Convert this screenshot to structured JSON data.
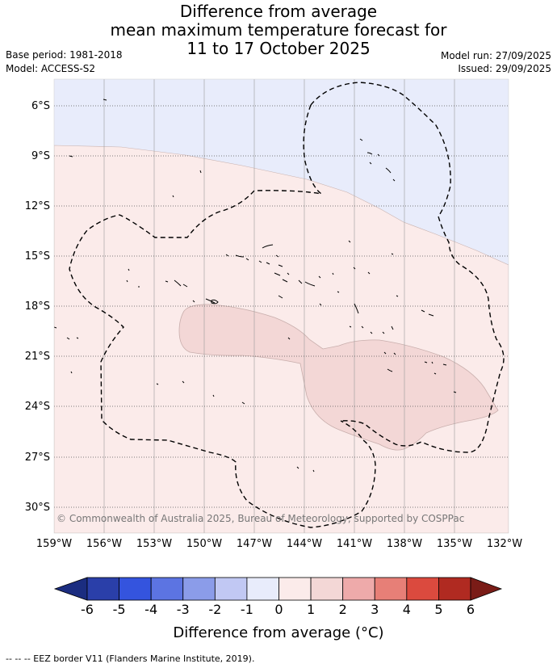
{
  "title": {
    "line1": "Difference from average",
    "line2": "mean maximum temperature forecast for",
    "line3": "11 to 17 October 2025"
  },
  "meta": {
    "base_period": "Base period: 1981-2018",
    "model": "Model: ACCESS-S2",
    "model_run": "Model run: 27/09/2025",
    "issued": "Issued: 29/09/2025"
  },
  "map": {
    "lat_labels": [
      "6°S",
      "9°S",
      "12°S",
      "15°S",
      "18°S",
      "21°S",
      "24°S",
      "27°S",
      "30°S"
    ],
    "lon_labels": [
      "159°W",
      "156°W",
      "153°W",
      "150°W",
      "147°W",
      "144°W",
      "141°W",
      "138°W",
      "135°W",
      "132°W"
    ],
    "copyright": "© Commonwealth of Australia 2025, Bureau of Meteorology, supported by COSPPac",
    "regions": [
      {
        "name": "minus-1-to-0",
        "color": "#e8ecfb"
      },
      {
        "name": "0-to-1",
        "color": "#fbebea"
      },
      {
        "name": "1-to-2",
        "color": "#f3d7d6"
      }
    ]
  },
  "colorbar": {
    "ticks": [
      "-6",
      "-5",
      "-4",
      "-3",
      "-2",
      "-1",
      "0",
      "1",
      "2",
      "3",
      "4",
      "5",
      "6"
    ],
    "colors": [
      "#2a3fa9",
      "#3454de",
      "#5c74e2",
      "#8b9ce9",
      "#c1c8f3",
      "#e8ecfb",
      "#fbebea",
      "#f3d7d6",
      "#eeaaaa",
      "#e77f77",
      "#db4a3e",
      "#b02a21"
    ],
    "under_color": "#1b2d80",
    "over_color": "#7a1c17",
    "title": "Difference from average (°C)"
  },
  "footnote": "-- -- -- EEZ border V11 (Flanders Marine Institute, 2019)."
}
